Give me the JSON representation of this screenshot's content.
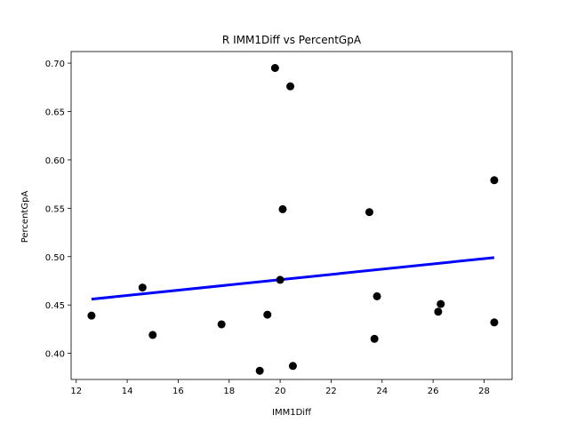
{
  "chart_data": {
    "type": "scatter",
    "title": "R IMM1Diff vs PercentGpA",
    "xlabel": "IMM1Diff",
    "ylabel": "PercentGpA",
    "xlim": [
      11.8,
      29.1
    ],
    "ylim": [
      0.373,
      0.712
    ],
    "xticks": [
      12,
      14,
      16,
      18,
      20,
      22,
      24,
      26,
      28
    ],
    "xtick_labels": [
      "12",
      "14",
      "16",
      "18",
      "20",
      "22",
      "24",
      "26",
      "28"
    ],
    "yticks": [
      0.4,
      0.45,
      0.5,
      0.55,
      0.6,
      0.65,
      0.7
    ],
    "ytick_labels": [
      "0.40",
      "0.45",
      "0.50",
      "0.55",
      "0.60",
      "0.65",
      "0.70"
    ],
    "grid": false,
    "points": [
      {
        "x": 12.6,
        "y": 0.439
      },
      {
        "x": 14.6,
        "y": 0.468
      },
      {
        "x": 15.0,
        "y": 0.419
      },
      {
        "x": 17.7,
        "y": 0.43
      },
      {
        "x": 19.2,
        "y": 0.382
      },
      {
        "x": 19.5,
        "y": 0.44
      },
      {
        "x": 19.8,
        "y": 0.695
      },
      {
        "x": 20.1,
        "y": 0.549
      },
      {
        "x": 20.0,
        "y": 0.476
      },
      {
        "x": 20.4,
        "y": 0.676
      },
      {
        "x": 20.5,
        "y": 0.387
      },
      {
        "x": 23.5,
        "y": 0.546
      },
      {
        "x": 23.7,
        "y": 0.415
      },
      {
        "x": 23.8,
        "y": 0.459
      },
      {
        "x": 26.2,
        "y": 0.443
      },
      {
        "x": 26.3,
        "y": 0.451
      },
      {
        "x": 28.4,
        "y": 0.579
      },
      {
        "x": 28.4,
        "y": 0.432
      }
    ],
    "regression_line": {
      "x": [
        12.6,
        28.4
      ],
      "y": [
        0.456,
        0.499
      ]
    },
    "point_color": "#000000",
    "line_color": "#0000ff"
  }
}
